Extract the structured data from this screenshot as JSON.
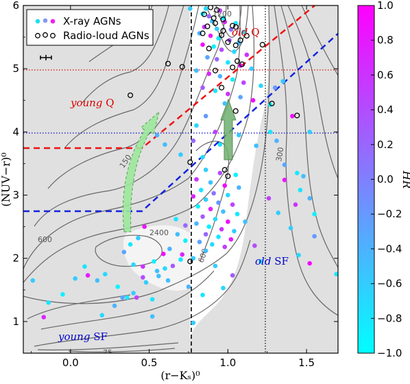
{
  "chart_data": {
    "type": "scatter",
    "xlabel": "(r−Kₛ)⁰",
    "ylabel": "(NUV−r)⁰",
    "xlim": [
      -0.3,
      1.7
    ],
    "ylim": [
      0.5,
      6.0
    ],
    "x_ticks": [
      "0.0",
      "0.5",
      "1.0",
      "1.5"
    ],
    "y_ticks": [
      "1",
      "2",
      "3",
      "4",
      "5",
      "6"
    ],
    "colorbar": {
      "label": "HR",
      "range": [
        -1.0,
        1.0
      ],
      "ticks": [
        "−1.0",
        "−0.8",
        "−0.6",
        "−0.4",
        "−0.2",
        "0.0",
        "0.2",
        "0.4",
        "0.6",
        "0.8",
        "1.0"
      ],
      "low_color": "#00ffff",
      "high_color": "#ff00ff"
    },
    "legend": {
      "placement": "top-left",
      "entries": [
        {
          "label": "X-ray AGNs",
          "marker": "filled-dots"
        },
        {
          "label": "Radio-loud AGNs",
          "marker": "open-circles"
        }
      ]
    },
    "contour_labels": [
      "600",
      "150",
      "2400",
      "300",
      "75",
      "600",
      "1200"
    ],
    "region_labels": [
      {
        "text_italic": "old",
        "text_rest": " Q",
        "color": "#dd0000"
      },
      {
        "text_italic": "young",
        "text_rest": " Q",
        "color": "#dd0000"
      },
      {
        "text_italic": "old",
        "text_rest": " SF",
        "color": "#0000cc"
      },
      {
        "text_italic": "young",
        "text_rest": " SF",
        "color": "#0000cc"
      }
    ],
    "reference_lines": {
      "red_horizontal_y": 5.0,
      "blue_horizontal_y": 4.0,
      "black_dashed_x": 0.76,
      "black_dotted_x": 1.23
    },
    "boundaries": {
      "red": [
        [
          -0.3,
          3.75
        ],
        [
          0.45,
          3.75
        ],
        [
          1.55,
          6.0
        ]
      ],
      "blue": [
        [
          -0.3,
          2.75
        ],
        [
          0.45,
          2.75
        ],
        [
          1.7,
          5.55
        ]
      ]
    },
    "series": [
      {
        "name": "X-ray AGNs",
        "points": [
          [
            0.76,
            5.95,
            -0.6
          ],
          [
            0.86,
            5.95,
            -0.7
          ],
          [
            0.95,
            5.92,
            0.5
          ],
          [
            0.84,
            5.87,
            -0.8
          ],
          [
            0.88,
            5.83,
            0.2
          ],
          [
            0.97,
            5.8,
            -0.9
          ],
          [
            0.9,
            5.75,
            -0.5
          ],
          [
            0.98,
            5.74,
            0.7
          ],
          [
            1.05,
            5.72,
            -0.8
          ],
          [
            0.85,
            5.66,
            0.6
          ],
          [
            0.93,
            5.63,
            -0.6
          ],
          [
            1.02,
            5.62,
            0.1
          ],
          [
            1.1,
            5.58,
            -0.7
          ],
          [
            0.82,
            5.56,
            -0.4
          ],
          [
            0.89,
            5.52,
            0.8
          ],
          [
            0.94,
            5.48,
            -0.8
          ],
          [
            1.01,
            5.45,
            0.3
          ],
          [
            1.07,
            5.41,
            -0.5
          ],
          [
            0.84,
            5.38,
            0.9
          ],
          [
            0.91,
            5.35,
            -0.9
          ],
          [
            0.96,
            5.3,
            0.4
          ],
          [
            1.04,
            5.27,
            -0.7
          ],
          [
            1.12,
            5.22,
            0.6
          ],
          [
            0.87,
            5.18,
            -0.3
          ],
          [
            0.93,
            5.15,
            0.2
          ],
          [
            1.0,
            5.1,
            -0.8
          ],
          [
            1.08,
            5.05,
            0.8
          ],
          [
            1.15,
            5.0,
            -0.6
          ],
          [
            0.8,
            4.97,
            -0.5
          ],
          [
            0.88,
            4.92,
            0.7
          ],
          [
            0.95,
            4.88,
            -0.4
          ],
          [
            1.03,
            4.83,
            -0.9
          ],
          [
            1.1,
            4.78,
            0.5
          ],
          [
            1.21,
            4.73,
            -0.7
          ],
          [
            1.3,
            4.7,
            -0.2
          ],
          [
            1.35,
            4.8,
            -0.6
          ],
          [
            0.84,
            4.7,
            0.3
          ],
          [
            0.92,
            4.65,
            -0.8
          ],
          [
            1.0,
            4.6,
            0.6
          ],
          [
            1.08,
            4.55,
            -0.3
          ],
          [
            1.16,
            4.5,
            0.9
          ],
          [
            0.98,
            4.45,
            -0.5
          ],
          [
            1.27,
            4.43,
            -0.9
          ],
          [
            1.41,
            4.25,
            0.9
          ],
          [
            1.52,
            4.0,
            -0.6
          ],
          [
            1.27,
            4.0,
            -0.8
          ],
          [
            1.31,
            3.86,
            -0.4
          ],
          [
            0.86,
            4.25,
            -0.2
          ],
          [
            0.8,
            4.1,
            -0.7
          ],
          [
            0.92,
            4.0,
            0.5
          ],
          [
            1.07,
            3.95,
            -0.6
          ],
          [
            0.78,
            3.86,
            0.2
          ],
          [
            0.95,
            3.8,
            -0.8
          ],
          [
            1.18,
            3.78,
            -0.5
          ],
          [
            0.6,
            3.8,
            -0.5
          ],
          [
            0.7,
            3.64,
            -0.6
          ],
          [
            0.84,
            3.6,
            -0.7
          ],
          [
            1.36,
            3.48,
            -0.3
          ],
          [
            1.44,
            3.35,
            -0.8
          ],
          [
            1.36,
            3.24,
            0.8
          ],
          [
            1.48,
            3.3,
            -0.5
          ],
          [
            0.86,
            3.4,
            -0.6
          ],
          [
            0.95,
            3.35,
            0.4
          ],
          [
            1.05,
            3.32,
            -0.9
          ],
          [
            0.8,
            3.25,
            0.6
          ],
          [
            0.89,
            3.2,
            -0.5
          ],
          [
            0.98,
            3.15,
            0.9
          ],
          [
            1.07,
            3.12,
            -0.4
          ],
          [
            0.83,
            3.08,
            -0.8
          ],
          [
            0.91,
            3.03,
            0.1
          ],
          [
            1.0,
            3.0,
            -0.7
          ],
          [
            0.78,
            2.98,
            0.7
          ],
          [
            0.86,
            2.93,
            -0.6
          ],
          [
            0.94,
            2.88,
            -0.2
          ],
          [
            1.03,
            2.85,
            0.5
          ],
          [
            0.81,
            2.82,
            -0.9
          ],
          [
            0.89,
            2.78,
            0.8
          ],
          [
            0.97,
            2.74,
            -0.5
          ],
          [
            1.06,
            2.7,
            -0.8
          ],
          [
            0.84,
            2.66,
            0.3
          ],
          [
            0.92,
            2.62,
            -0.7
          ],
          [
            1.0,
            2.58,
            0.9
          ],
          [
            0.8,
            2.55,
            -0.4
          ],
          [
            0.88,
            2.5,
            -0.9
          ],
          [
            0.96,
            2.46,
            0.6
          ],
          [
            1.04,
            2.43,
            -0.6
          ],
          [
            0.86,
            2.38,
            0.2
          ],
          [
            0.94,
            2.34,
            -0.8
          ],
          [
            1.02,
            2.3,
            0.8
          ],
          [
            0.82,
            2.26,
            -0.3
          ],
          [
            0.9,
            2.22,
            -0.7
          ],
          [
            0.98,
            2.18,
            0.5
          ],
          [
            0.86,
            2.12,
            -0.5
          ],
          [
            1.46,
            3.08,
            -0.8
          ],
          [
            1.52,
            2.95,
            -0.4
          ],
          [
            1.43,
            2.85,
            0.6
          ],
          [
            1.55,
            2.7,
            -0.9
          ],
          [
            1.4,
            2.48,
            -0.6
          ],
          [
            1.55,
            2.35,
            -0.2
          ],
          [
            1.52,
            1.92,
            0.9
          ],
          [
            1.45,
            2.05,
            -0.7
          ],
          [
            1.32,
            2.72,
            -0.6
          ],
          [
            1.26,
            2.95,
            0.5
          ],
          [
            1.69,
            1.75,
            -0.8
          ],
          [
            1.11,
            2.58,
            -0.5
          ],
          [
            1.17,
            2.2,
            0.4
          ],
          [
            1.21,
            1.95,
            -0.7
          ],
          [
            0.67,
            2.62,
            -0.8
          ],
          [
            0.73,
            2.52,
            0.2
          ],
          [
            0.68,
            2.38,
            -0.5
          ],
          [
            0.73,
            2.28,
            -0.9
          ],
          [
            0.63,
            2.15,
            -0.4
          ],
          [
            0.71,
            2.06,
            0.7
          ],
          [
            0.78,
            2.0,
            -0.6
          ],
          [
            0.7,
            1.98,
            -0.8
          ],
          [
            0.65,
            1.88,
            0.3
          ],
          [
            0.6,
            1.84,
            -0.7
          ],
          [
            0.55,
            1.8,
            -0.5
          ],
          [
            0.53,
            1.95,
            -0.9
          ],
          [
            0.46,
            1.87,
            0.6
          ],
          [
            0.48,
            1.62,
            -0.6
          ],
          [
            0.43,
            2.32,
            -0.6
          ],
          [
            0.47,
            2.5,
            0.8
          ],
          [
            0.38,
            2.22,
            -0.8
          ],
          [
            0.34,
            2.1,
            -0.3
          ],
          [
            0.4,
            1.9,
            -0.7
          ],
          [
            0.46,
            1.7,
            0.4
          ],
          [
            0.52,
            1.35,
            -0.8
          ],
          [
            0.62,
            1.65,
            -0.5
          ],
          [
            0.3,
            1.55,
            -0.9
          ],
          [
            0.4,
            1.45,
            -0.6
          ],
          [
            0.42,
            1.38,
            0.5
          ],
          [
            0.22,
            1.75,
            -0.7
          ],
          [
            0.17,
            1.65,
            -0.5
          ],
          [
            0.09,
            1.87,
            -0.8
          ],
          [
            0.11,
            1.73,
            0.8
          ],
          [
            0.03,
            1.68,
            -0.6
          ],
          [
            -0.05,
            1.43,
            -0.9
          ],
          [
            -0.14,
            1.3,
            -0.8
          ],
          [
            -0.24,
            1.65,
            -0.6
          ],
          [
            -0.17,
            1.07,
            0.7
          ],
          [
            0.2,
            1.1,
            -0.7
          ],
          [
            0.28,
            1.25,
            -0.4
          ],
          [
            0.36,
            1.38,
            -0.8
          ],
          [
            0.78,
            0.98,
            -0.6
          ],
          [
            0.33,
            1.38,
            -0.3
          ],
          [
            0.56,
            1.72,
            -0.5
          ],
          [
            0.59,
            2.07,
            0.9
          ],
          [
            0.75,
            1.55,
            -0.4
          ],
          [
            0.97,
            1.53,
            -0.7
          ],
          [
            1.03,
            1.73,
            0.3
          ],
          [
            0.92,
            1.88,
            -0.6
          ],
          [
            0.84,
            1.42,
            -0.8
          ],
          [
            0.52,
            1.08,
            -0.5
          ],
          [
            0.55,
            3.95,
            -0.4
          ]
        ]
      },
      {
        "name": "Radio-loud AGNs",
        "points": [
          [
            0.89,
            5.97
          ],
          [
            0.93,
            5.93
          ],
          [
            0.85,
            5.86
          ],
          [
            0.91,
            5.8
          ],
          [
            0.97,
            5.78
          ],
          [
            1.03,
            5.68
          ],
          [
            0.92,
            5.72
          ],
          [
            0.87,
            5.67
          ],
          [
            1.05,
            5.66
          ],
          [
            0.97,
            5.6
          ],
          [
            0.84,
            5.56
          ],
          [
            0.96,
            5.53
          ],
          [
            1.12,
            5.52
          ],
          [
            1.0,
            5.42
          ],
          [
            1.05,
            5.37
          ],
          [
            1.08,
            5.45
          ],
          [
            0.88,
            5.32
          ],
          [
            1.22,
            5.38
          ],
          [
            1.09,
            5.07
          ],
          [
            1.03,
            5.02
          ],
          [
            1.06,
            5.12
          ],
          [
            0.92,
            4.97
          ],
          [
            0.62,
            5.08
          ],
          [
            0.71,
            5.03
          ],
          [
            0.96,
            4.7
          ],
          [
            1.05,
            4.33
          ],
          [
            1.28,
            4.45
          ],
          [
            1.44,
            4.26
          ],
          [
            0.38,
            4.58
          ],
          [
            0.76,
            3.52
          ],
          [
            0.98,
            3.4
          ],
          [
            1.0,
            3.3
          ],
          [
            0.76,
            1.95
          ]
        ]
      }
    ]
  }
}
